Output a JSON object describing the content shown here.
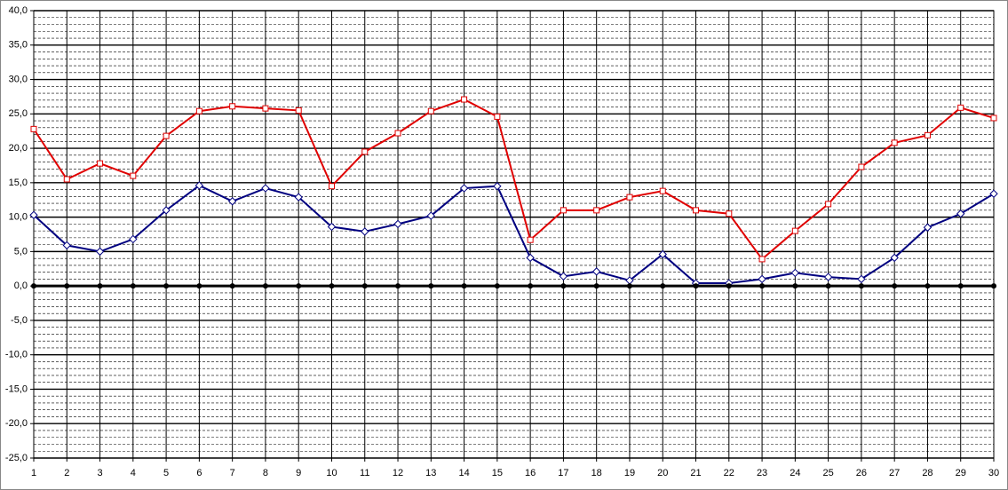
{
  "chart_data": {
    "type": "line",
    "categories": [
      "1",
      "2",
      "3",
      "4",
      "5",
      "6",
      "7",
      "8",
      "9",
      "10",
      "11",
      "12",
      "13",
      "14",
      "15",
      "16",
      "17",
      "18",
      "19",
      "20",
      "21",
      "22",
      "23",
      "24",
      "25",
      "26",
      "27",
      "28",
      "29",
      "30"
    ],
    "series": [
      {
        "color": "#e00000",
        "marker": "square",
        "values": [
          22.8,
          15.5,
          17.8,
          16.0,
          21.8,
          25.4,
          26.1,
          25.8,
          25.5,
          14.5,
          19.5,
          22.2,
          25.4,
          27.1,
          24.6,
          6.7,
          11.0,
          11.0,
          12.9,
          13.8,
          11.0,
          10.5,
          3.9,
          8.0,
          11.9,
          17.3,
          20.8,
          21.9,
          25.9,
          24.4
        ]
      },
      {
        "color": "#000080",
        "marker": "diamond",
        "values": [
          10.3,
          5.9,
          5.0,
          6.8,
          11.0,
          14.6,
          12.3,
          14.2,
          12.9,
          8.6,
          7.9,
          9.0,
          10.2,
          14.2,
          14.5,
          4.1,
          1.4,
          2.1,
          0.8,
          4.6,
          0.4,
          0.4,
          1.0,
          1.9,
          1.3,
          1.0,
          4.1,
          8.5,
          10.5,
          13.4
        ]
      },
      {
        "color": "#000000",
        "marker": "circle",
        "values": [
          0,
          0,
          0,
          0,
          0,
          0,
          0,
          0,
          0,
          0,
          0,
          0,
          0,
          0,
          0,
          0,
          0,
          0,
          0,
          0,
          0,
          0,
          0,
          0,
          0,
          0,
          0,
          0,
          0,
          0
        ]
      }
    ],
    "ylim": [
      -25,
      40
    ],
    "yticks": [
      {
        "value": -25,
        "label": "-25,0"
      },
      {
        "value": -20,
        "label": "-20,0"
      },
      {
        "value": -15,
        "label": "-15,0"
      },
      {
        "value": -10,
        "label": "-10,0"
      },
      {
        "value": -5,
        "label": "-5,0"
      },
      {
        "value": 0,
        "label": "0,0"
      },
      {
        "value": 5,
        "label": "5,0"
      },
      {
        "value": 10,
        "label": "10,0"
      },
      {
        "value": 15,
        "label": "15,0"
      },
      {
        "value": 20,
        "label": "20,0"
      },
      {
        "value": 25,
        "label": "25,0"
      },
      {
        "value": 30,
        "label": "30,0"
      },
      {
        "value": 35,
        "label": "35,0"
      },
      {
        "value": 40,
        "label": "40,0"
      }
    ],
    "grid": true,
    "minor_grid": true
  }
}
